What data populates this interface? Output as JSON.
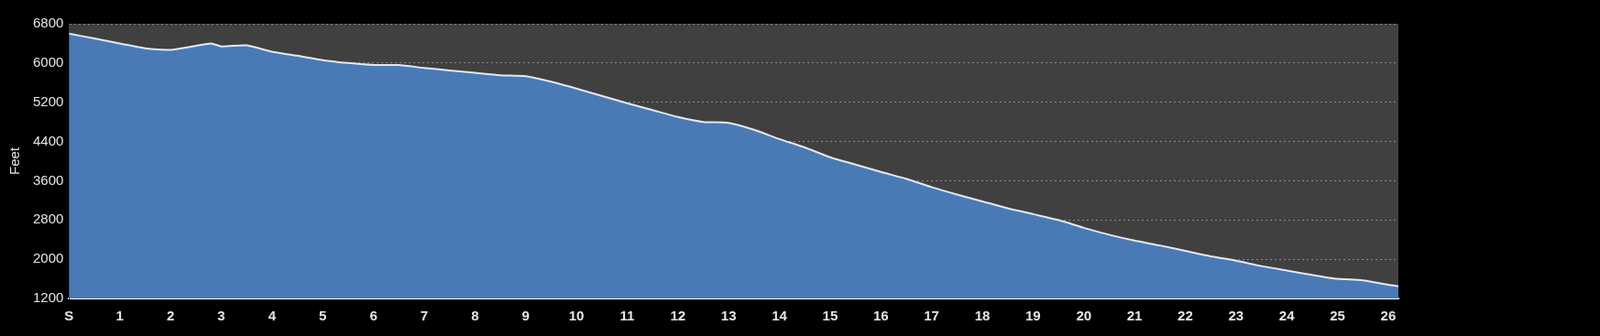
{
  "chart_data": {
    "type": "area",
    "y_label": "Feet",
    "x": [
      0,
      0.5,
      1,
      1.5,
      2,
      2.5,
      2.8,
      3,
      3.5,
      4,
      4.5,
      5,
      5.5,
      6,
      6.5,
      7,
      7.5,
      8,
      8.5,
      9,
      9.5,
      10,
      10.5,
      11,
      11.5,
      12,
      12.5,
      13,
      13.5,
      14,
      14.5,
      15,
      15.5,
      16,
      16.5,
      17,
      17.5,
      18,
      18.5,
      19,
      19.5,
      20,
      20.5,
      21,
      21.5,
      22,
      22.5,
      23,
      23.5,
      24,
      24.5,
      25,
      25.5,
      26,
      26.2
    ],
    "values": [
      6600,
      6500,
      6400,
      6300,
      6270,
      6350,
      6400,
      6340,
      6360,
      6230,
      6150,
      6060,
      6000,
      5960,
      5960,
      5900,
      5850,
      5800,
      5750,
      5730,
      5620,
      5480,
      5330,
      5180,
      5040,
      4900,
      4800,
      4780,
      4640,
      4450,
      4280,
      4080,
      3930,
      3780,
      3640,
      3470,
      3320,
      3180,
      3040,
      2920,
      2800,
      2640,
      2500,
      2380,
      2280,
      2170,
      2060,
      1970,
      1860,
      1770,
      1680,
      1600,
      1570,
      1480,
      1450
    ],
    "color": "#4a7ab5",
    "xlim": [
      0,
      26.2
    ],
    "xticks": [
      {
        "value": 0,
        "label": "S"
      },
      1,
      2,
      3,
      4,
      5,
      6,
      7,
      8,
      9,
      10,
      11,
      12,
      13,
      14,
      15,
      16,
      17,
      18,
      19,
      20,
      21,
      22,
      23,
      24,
      25,
      26
    ],
    "ylim": [
      1200,
      6800
    ],
    "yticks": [
      1200,
      2000,
      2800,
      3600,
      4400,
      5200,
      6000,
      6800
    ],
    "grid": true
  }
}
